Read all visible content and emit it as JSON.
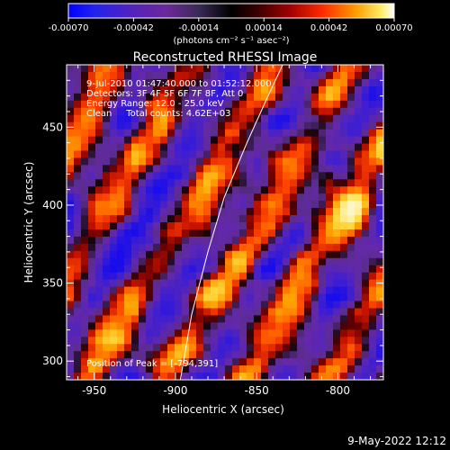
{
  "colorbar": {
    "ticks": [
      "-0.00070",
      "-0.00042",
      "-0.00014",
      "0.00014",
      "0.00042",
      "0.00070"
    ],
    "unit_label": "(photons cm⁻² s⁻¹ asec⁻²)"
  },
  "chart_data": {
    "type": "heatmap",
    "title": "Reconstructed RHESSI Image",
    "xlabel": "Heliocentric X (arcsec)",
    "ylabel": "Heliocentric Y (arcsec)",
    "xlim": [
      -967,
      -772
    ],
    "ylim": [
      288,
      490
    ],
    "x_ticks": [
      -950,
      -900,
      -850,
      -800
    ],
    "y_ticks": [
      300,
      350,
      400,
      450
    ],
    "color_range": [
      -0.0007,
      0.0007
    ],
    "peak": [
      -794,
      391
    ],
    "limb_curve": [
      [
        -897,
        288
      ],
      [
        -890,
        330
      ],
      [
        -880,
        370
      ],
      [
        -870,
        405
      ],
      [
        -856,
        440
      ],
      [
        -843,
        470
      ],
      [
        -834,
        490
      ]
    ],
    "annotations": [
      "9-Jul-2010 01:47:40.000 to 01:52:12.000",
      "Detectors: 3F 4F 5F 6F 7F 8F, Att 0",
      "Energy Range: 12.0 - 25.0 keV",
      "Clean     Total counts: 4.62E+03"
    ],
    "peak_label": "Position of Peak = [-794,391]"
  },
  "timestamp": "9-May-2022 12:12"
}
